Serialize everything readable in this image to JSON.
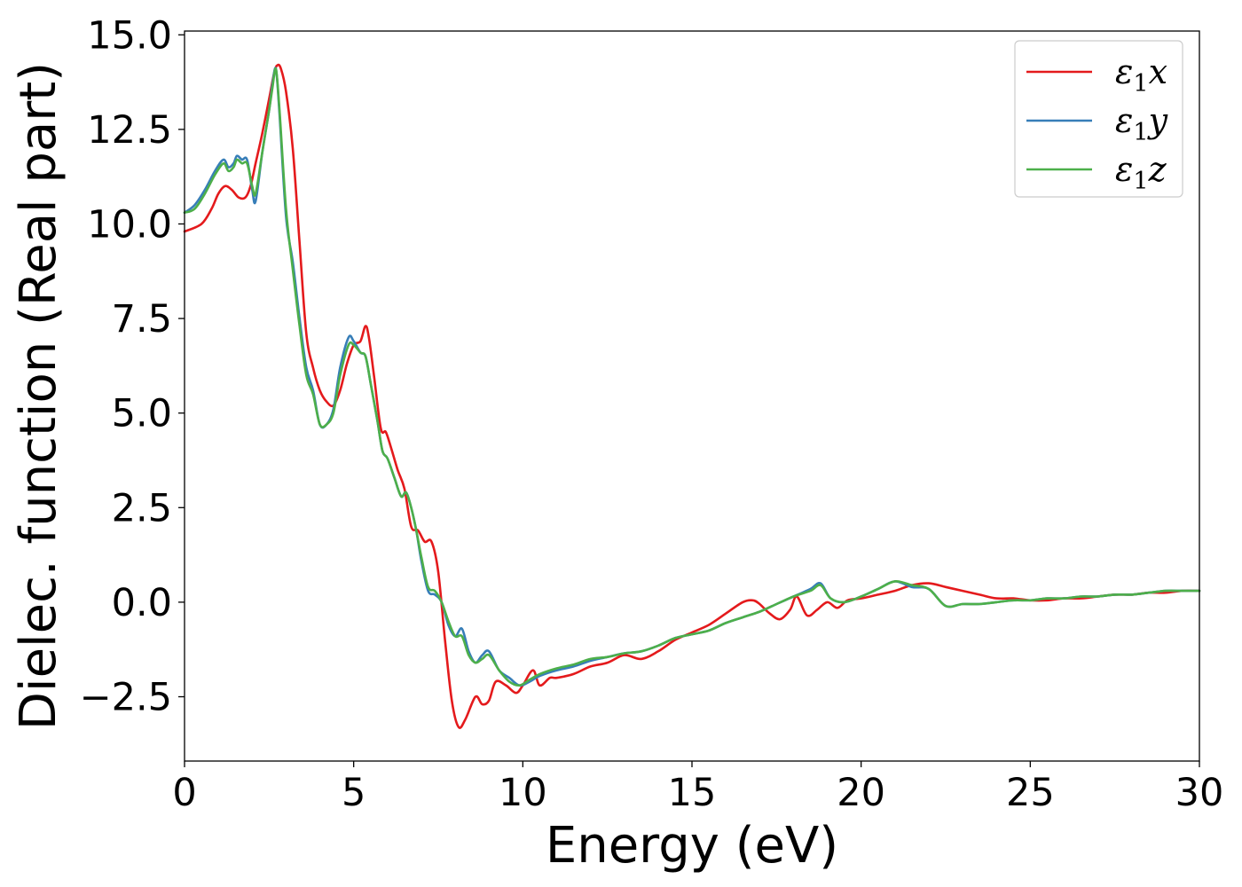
{
  "chart_data": {
    "type": "line",
    "title": "",
    "xlabel": "Energy (eV)",
    "ylabel": "Dielec. function (Real part)",
    "xlim": [
      0,
      30
    ],
    "ylim": [
      -4.2,
      15.1
    ],
    "xticks": [
      0,
      5,
      10,
      15,
      20,
      25,
      30
    ],
    "xtick_labels": [
      "0",
      "5",
      "10",
      "15",
      "20",
      "25",
      "30"
    ],
    "yticks": [
      -2.5,
      0.0,
      2.5,
      5.0,
      7.5,
      10.0,
      12.5,
      15.0
    ],
    "ytick_labels": [
      "−2.5",
      "0.0",
      "2.5",
      "5.0",
      "7.5",
      "10.0",
      "12.5",
      "15.0"
    ],
    "grid": false,
    "legend_position": "top-right",
    "series": [
      {
        "name": "ε1x",
        "label_main": "ε",
        "label_sub": "1",
        "label_tail": "x",
        "color": "#e41a1c",
        "x": [
          0,
          0.5,
          0.8,
          1.0,
          1.2,
          1.4,
          1.6,
          1.8,
          1.95,
          2.1,
          2.3,
          2.5,
          2.65,
          2.75,
          2.85,
          3.0,
          3.2,
          3.4,
          3.6,
          3.8,
          4.0,
          4.2,
          4.4,
          4.6,
          4.8,
          5.0,
          5.2,
          5.35,
          5.45,
          5.6,
          5.8,
          5.95,
          6.1,
          6.3,
          6.5,
          6.7,
          6.9,
          7.1,
          7.3,
          7.5,
          7.7,
          7.9,
          8.1,
          8.3,
          8.6,
          8.8,
          9.0,
          9.2,
          9.5,
          9.8,
          10.0,
          10.3,
          10.5,
          10.8,
          11.0,
          11.5,
          12.0,
          12.5,
          13.0,
          13.5,
          14.0,
          14.5,
          15.0,
          15.5,
          16.0,
          16.5,
          16.8,
          17.0,
          17.3,
          17.6,
          17.9,
          18.1,
          18.4,
          18.7,
          19.0,
          19.3,
          19.6,
          20.0,
          20.5,
          21.0,
          21.5,
          22.0,
          22.5,
          23.0,
          23.5,
          24.0,
          24.5,
          25.0,
          25.5,
          26.0,
          26.5,
          27.0,
          27.5,
          28.0,
          28.5,
          29.0,
          29.5,
          30.0
        ],
        "y": [
          9.8,
          10.0,
          10.4,
          10.8,
          11.0,
          10.9,
          10.7,
          10.7,
          11.0,
          11.6,
          12.4,
          13.3,
          14.0,
          14.2,
          14.1,
          13.5,
          12.0,
          9.5,
          7.1,
          6.2,
          5.6,
          5.3,
          5.2,
          5.6,
          6.3,
          6.8,
          6.9,
          7.3,
          7.0,
          6.0,
          4.6,
          4.5,
          4.1,
          3.5,
          3.0,
          2.0,
          1.9,
          1.6,
          1.6,
          0.8,
          -1.0,
          -2.6,
          -3.3,
          -3.1,
          -2.5,
          -2.7,
          -2.6,
          -2.1,
          -2.2,
          -2.4,
          -2.2,
          -1.8,
          -2.2,
          -2.0,
          -2.0,
          -1.9,
          -1.7,
          -1.6,
          -1.4,
          -1.5,
          -1.3,
          -1.0,
          -0.8,
          -0.6,
          -0.3,
          0.0,
          0.05,
          -0.05,
          -0.3,
          -0.45,
          -0.2,
          0.15,
          -0.35,
          -0.2,
          0.0,
          -0.15,
          0.05,
          0.1,
          0.2,
          0.3,
          0.45,
          0.5,
          0.4,
          0.3,
          0.2,
          0.1,
          0.1,
          0.05,
          0.05,
          0.1,
          0.1,
          0.15,
          0.2,
          0.2,
          0.25,
          0.25,
          0.3,
          0.3
        ]
      },
      {
        "name": "ε1y",
        "label_main": "ε",
        "label_sub": "1",
        "label_tail": "y",
        "color": "#377eb8",
        "x": [
          0,
          0.3,
          0.6,
          0.9,
          1.15,
          1.3,
          1.45,
          1.55,
          1.7,
          1.85,
          2.0,
          2.1,
          2.3,
          2.5,
          2.6,
          2.7,
          2.8,
          3.0,
          3.2,
          3.4,
          3.6,
          3.8,
          4.0,
          4.2,
          4.4,
          4.6,
          4.85,
          5.0,
          5.2,
          5.35,
          5.5,
          5.7,
          5.85,
          6.0,
          6.2,
          6.4,
          6.55,
          6.7,
          6.85,
          7.0,
          7.2,
          7.4,
          7.6,
          7.8,
          8.0,
          8.2,
          8.4,
          8.6,
          8.8,
          9.0,
          9.3,
          9.6,
          9.9,
          10.2,
          10.5,
          11.0,
          11.5,
          12.0,
          12.5,
          13.0,
          13.5,
          14.0,
          14.5,
          15.0,
          15.5,
          16.0,
          16.5,
          17.0,
          17.5,
          18.0,
          18.5,
          18.8,
          19.1,
          19.5,
          20.0,
          20.5,
          21.0,
          21.5,
          22.0,
          22.5,
          23.0,
          23.5,
          24.0,
          24.5,
          25.0,
          25.5,
          26.0,
          26.5,
          27.0,
          27.5,
          28.0,
          28.5,
          29.0,
          29.5,
          30.0
        ],
        "y": [
          10.3,
          10.5,
          10.9,
          11.4,
          11.7,
          11.5,
          11.6,
          11.8,
          11.7,
          11.7,
          10.9,
          10.6,
          11.9,
          13.0,
          13.7,
          14.1,
          13.0,
          10.2,
          9.0,
          7.5,
          6.2,
          5.6,
          4.7,
          4.7,
          5.1,
          6.2,
          7.0,
          6.9,
          6.6,
          6.5,
          5.8,
          4.8,
          4.0,
          3.8,
          3.3,
          2.8,
          2.9,
          2.5,
          1.9,
          1.1,
          0.3,
          0.2,
          0.0,
          -0.6,
          -0.9,
          -0.7,
          -1.3,
          -1.6,
          -1.4,
          -1.3,
          -1.8,
          -2.0,
          -2.2,
          -2.1,
          -1.95,
          -1.8,
          -1.7,
          -1.55,
          -1.45,
          -1.35,
          -1.3,
          -1.15,
          -0.95,
          -0.85,
          -0.75,
          -0.55,
          -0.4,
          -0.25,
          -0.05,
          0.15,
          0.35,
          0.5,
          0.1,
          0.0,
          0.15,
          0.35,
          0.55,
          0.4,
          0.35,
          -0.1,
          -0.05,
          -0.05,
          0.0,
          0.05,
          0.05,
          0.1,
          0.1,
          0.15,
          0.15,
          0.2,
          0.2,
          0.25,
          0.3,
          0.3,
          0.3
        ]
      },
      {
        "name": "ε1z",
        "label_main": "ε",
        "label_sub": "1",
        "label_tail": "z",
        "color": "#4daf4a",
        "x": [
          0,
          0.3,
          0.6,
          0.9,
          1.15,
          1.3,
          1.45,
          1.55,
          1.7,
          1.85,
          2.0,
          2.1,
          2.3,
          2.5,
          2.6,
          2.7,
          2.8,
          3.0,
          3.2,
          3.4,
          3.6,
          3.8,
          4.0,
          4.2,
          4.4,
          4.6,
          4.85,
          5.0,
          5.2,
          5.35,
          5.5,
          5.7,
          5.85,
          6.0,
          6.2,
          6.4,
          6.55,
          6.7,
          6.85,
          7.0,
          7.2,
          7.4,
          7.6,
          7.8,
          8.0,
          8.2,
          8.4,
          8.6,
          8.8,
          9.0,
          9.3,
          9.6,
          9.9,
          10.2,
          10.5,
          11.0,
          11.5,
          12.0,
          12.5,
          13.0,
          13.5,
          14.0,
          14.5,
          15.0,
          15.5,
          16.0,
          16.5,
          17.0,
          17.5,
          18.0,
          18.5,
          18.8,
          19.1,
          19.5,
          20.0,
          20.5,
          21.0,
          21.5,
          22.0,
          22.5,
          23.0,
          23.5,
          24.0,
          24.5,
          25.0,
          25.5,
          26.0,
          26.5,
          27.0,
          27.5,
          28.0,
          28.5,
          29.0,
          29.5,
          30.0
        ],
        "y": [
          10.3,
          10.4,
          10.8,
          11.3,
          11.6,
          11.4,
          11.5,
          11.7,
          11.6,
          11.6,
          11.0,
          10.8,
          11.9,
          13.0,
          13.6,
          14.1,
          13.1,
          10.4,
          8.8,
          7.3,
          6.0,
          5.5,
          4.7,
          4.7,
          5.0,
          6.0,
          6.8,
          6.8,
          6.6,
          6.5,
          5.8,
          4.8,
          4.0,
          3.8,
          3.3,
          2.8,
          2.9,
          2.5,
          1.9,
          1.2,
          0.4,
          0.3,
          0.0,
          -0.5,
          -0.9,
          -0.9,
          -1.4,
          -1.6,
          -1.5,
          -1.4,
          -1.8,
          -2.1,
          -2.2,
          -2.05,
          -1.9,
          -1.75,
          -1.65,
          -1.5,
          -1.45,
          -1.35,
          -1.3,
          -1.15,
          -0.95,
          -0.85,
          -0.75,
          -0.55,
          -0.4,
          -0.25,
          -0.05,
          0.15,
          0.3,
          0.45,
          0.1,
          0.0,
          0.15,
          0.35,
          0.55,
          0.45,
          0.35,
          -0.1,
          -0.05,
          -0.05,
          0.0,
          0.05,
          0.05,
          0.1,
          0.1,
          0.15,
          0.15,
          0.2,
          0.2,
          0.25,
          0.3,
          0.3,
          0.3
        ]
      }
    ]
  }
}
